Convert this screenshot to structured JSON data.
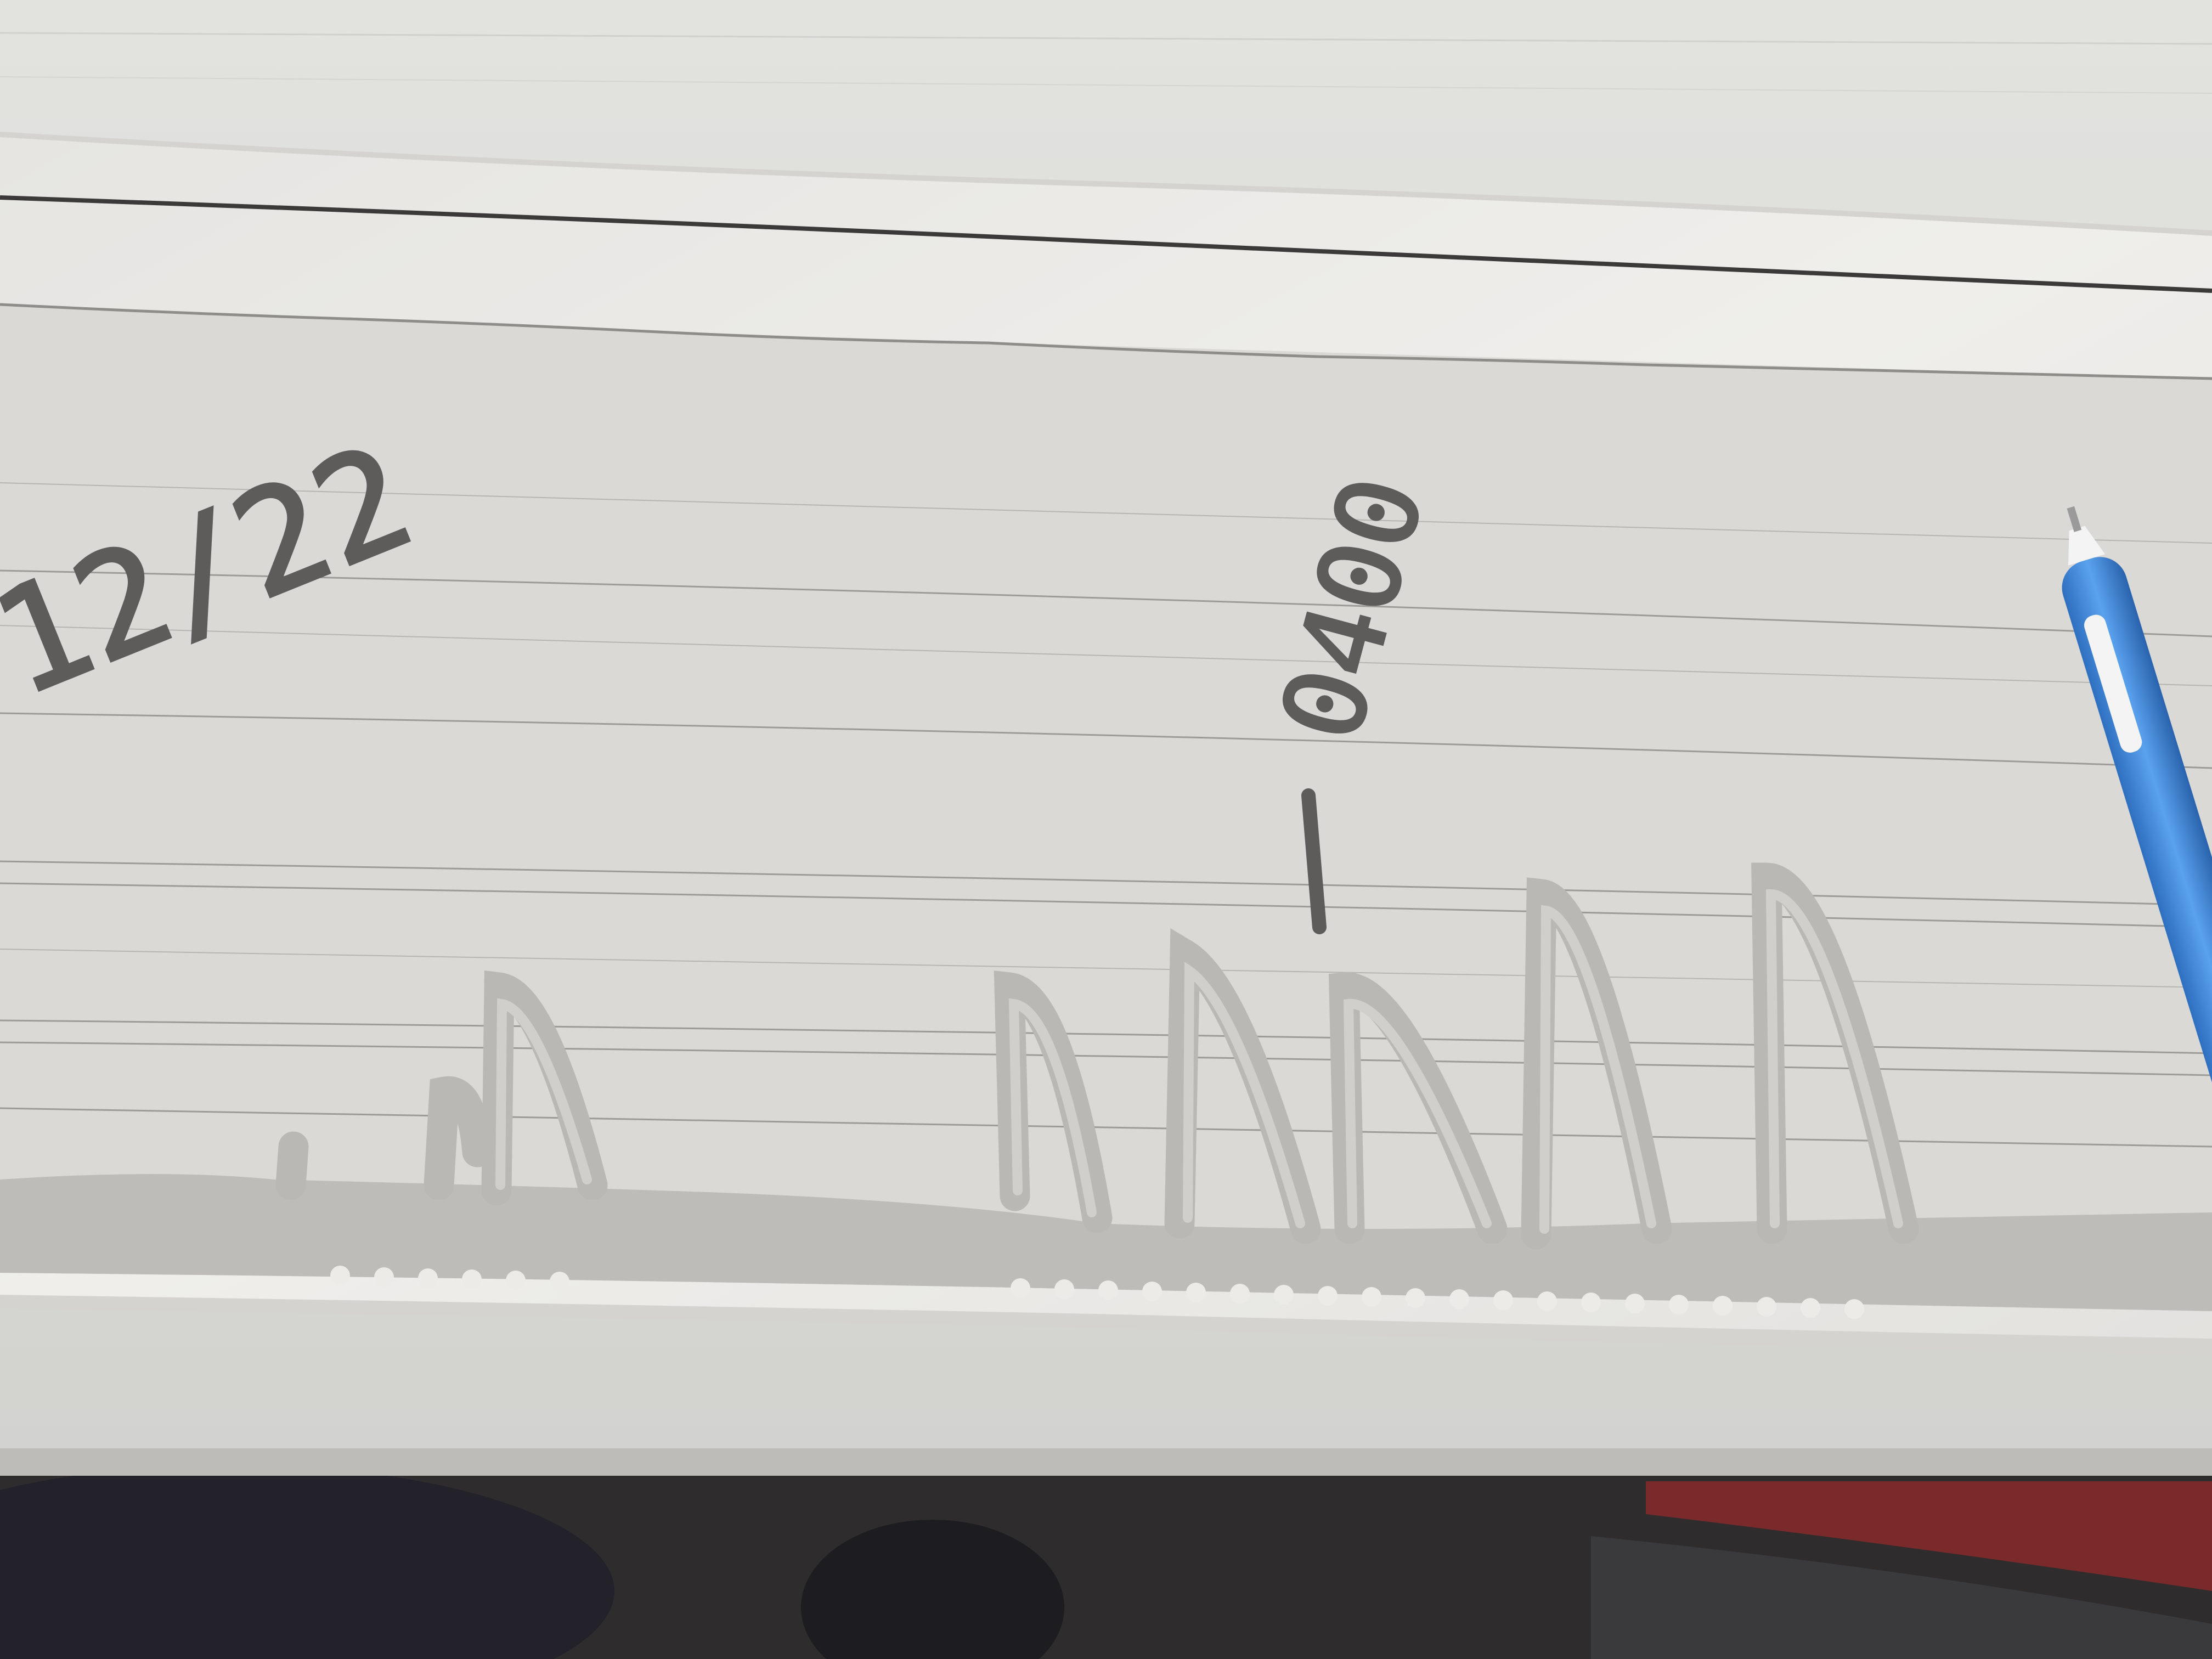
{
  "photo": {
    "handwriting": {
      "date": "12/22",
      "time_mark": "0400"
    },
    "colors": {
      "desk": "#dcdcd9",
      "desk_edge": "#bdbcb8",
      "paper": "#ecebe8",
      "paper_shadow": "#d4d3cf",
      "graph_area": "#dad9d6",
      "ink": "#5d5c5a",
      "trace": "#bdbcb9",
      "floor": "#2e2c2d",
      "pen_body": "#4a90dd",
      "pen_tip": "#f4f4f4",
      "floor_red": "#7a2a2a"
    },
    "objects": [
      "desk-surface",
      "paper-strip",
      "chart-trace",
      "pen"
    ]
  }
}
